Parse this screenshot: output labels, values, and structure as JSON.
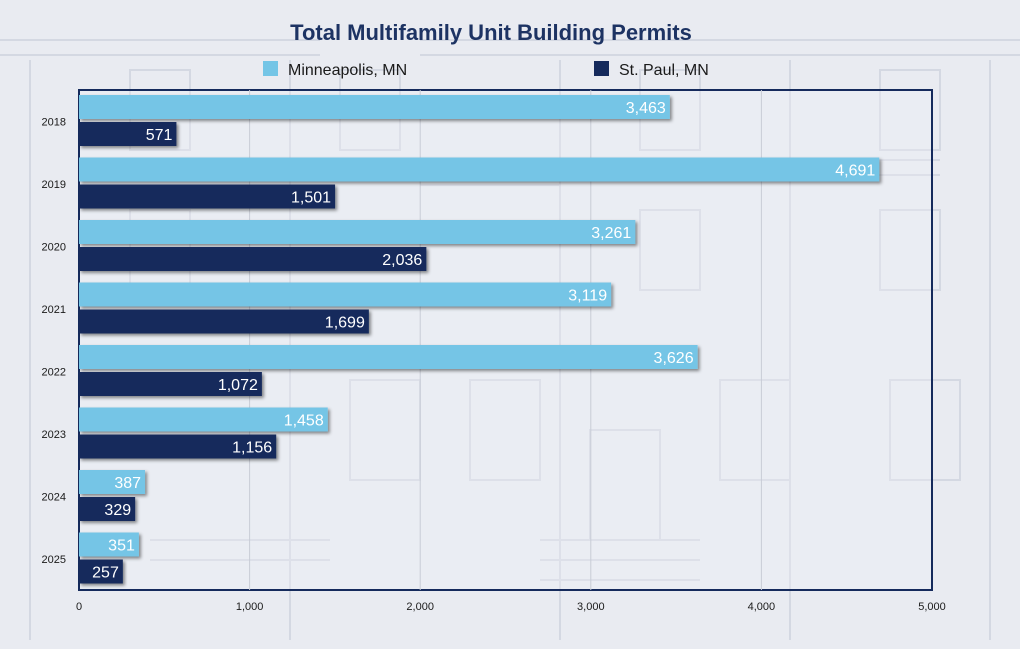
{
  "chart_data": {
    "type": "bar",
    "orientation": "horizontal",
    "title": "Total Multifamily Unit Building Permits",
    "categories": [
      "2018",
      "2019",
      "2020",
      "2021",
      "2022",
      "2023",
      "2024",
      "2025"
    ],
    "series": [
      {
        "name": "Minneapolis, MN",
        "color": "#74c5e6",
        "values": [
          3463,
          4691,
          3261,
          3119,
          3626,
          1458,
          387,
          351
        ],
        "labels": [
          "3,463",
          "4,691",
          "3,261",
          "3,119",
          "3,626",
          "1,458",
          "387",
          "351"
        ]
      },
      {
        "name": "St. Paul, MN",
        "color": "#152a5c",
        "values": [
          571,
          1501,
          2036,
          1699,
          1072,
          1156,
          329,
          257
        ],
        "labels": [
          "571",
          "1,501",
          "2,036",
          "1,699",
          "1,072",
          "1,156",
          "329",
          "257"
        ]
      }
    ],
    "xlim": [
      0,
      5000
    ],
    "x_ticks": [
      0,
      1000,
      2000,
      3000,
      4000,
      5000
    ],
    "x_tick_labels": [
      "0",
      "1,000",
      "2,000",
      "3,000",
      "4,000",
      "5,000"
    ],
    "grid": "vertical",
    "legend_position": "top"
  },
  "colors": {
    "title": "#1d3363",
    "frame": "#152a5c",
    "grid": "#c8ccd6",
    "background": "#e9ebf1"
  }
}
